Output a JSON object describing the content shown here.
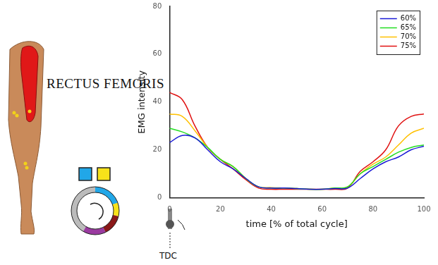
{
  "chart_data": {
    "type": "line",
    "title": "RECTUS FEMORIS",
    "annotations": [
      "TDC"
    ],
    "x_label": "time [% of total cycle]",
    "y_label": "EMG intensity",
    "x": [
      0,
      5,
      10,
      15,
      20,
      25,
      30,
      35,
      40,
      45,
      50,
      55,
      60,
      65,
      70,
      75,
      80,
      85,
      90,
      95,
      100
    ],
    "series": [
      {
        "name": "60%",
        "color": "#1a1ad6",
        "values": [
          23,
          26,
          25,
          20,
          15,
          12,
          8,
          4.5,
          4,
          4,
          3.8,
          3.5,
          3.5,
          3.8,
          4,
          8,
          12,
          15,
          17,
          20,
          21.5
        ]
      },
      {
        "name": "65%",
        "color": "#22dd22",
        "values": [
          29,
          27.5,
          25,
          21,
          16,
          13,
          8,
          4.5,
          4,
          4,
          3.8,
          3.5,
          3.5,
          4,
          4.5,
          10,
          13,
          16,
          19,
          21,
          22
        ]
      },
      {
        "name": "70%",
        "color": "#ffc000",
        "values": [
          35,
          34,
          28,
          21,
          16,
          13,
          8,
          4.5,
          4.2,
          4,
          3.8,
          3.5,
          3.5,
          4,
          4.5,
          10,
          14,
          17,
          22,
          27,
          29
        ]
      },
      {
        "name": "75%",
        "color": "#e01010",
        "values": [
          44,
          41,
          30,
          21,
          16,
          12,
          7.5,
          4,
          3.5,
          3.5,
          3.5,
          3.5,
          3.5,
          3.5,
          4,
          11,
          15,
          20,
          30,
          34,
          35
        ]
      }
    ],
    "xlim": [
      0,
      100
    ],
    "xticks": [
      0,
      20,
      40,
      60,
      80,
      100
    ],
    "ylim": [
      0,
      80
    ],
    "yticks": [
      0,
      20,
      40,
      60,
      80
    ],
    "grid": false,
    "legend": "top right"
  }
}
